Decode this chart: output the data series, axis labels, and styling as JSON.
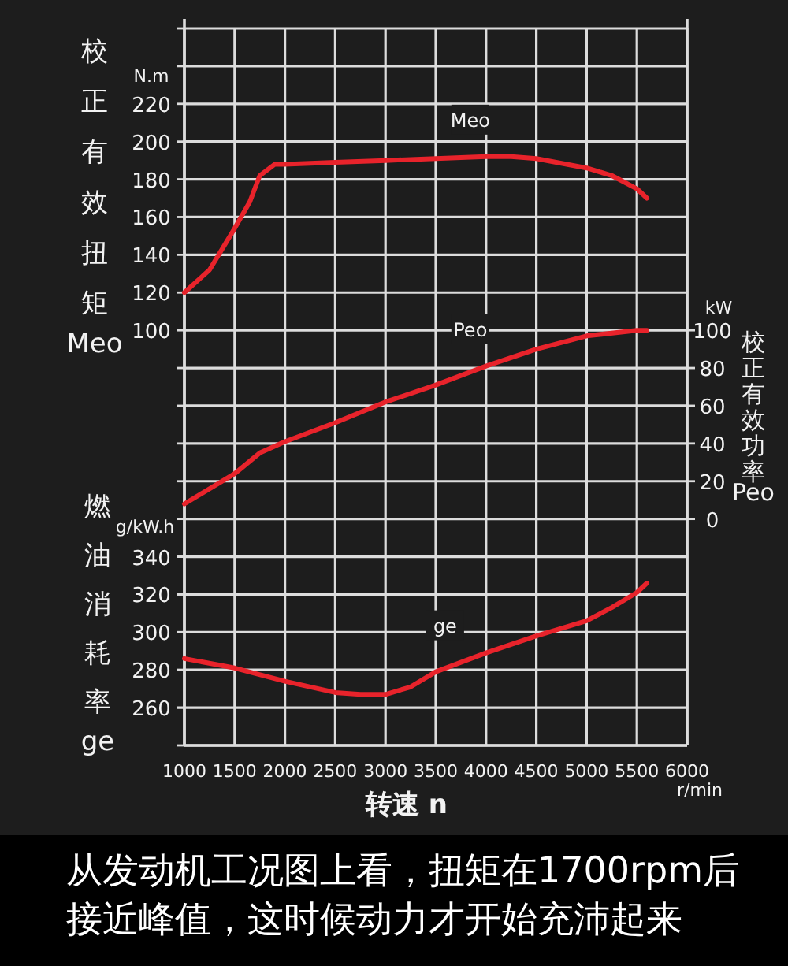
{
  "chart_data": {
    "type": "line",
    "xlabel": "转速 n",
    "ylabel": "校正有效扭矩Meo",
    "y2label": "校正有效功率Peo",
    "y3label": "燃油消耗率ge",
    "xlim": [
      1000,
      6000
    ],
    "xticks": [
      1000,
      1500,
      2000,
      2500,
      3000,
      3500,
      4000,
      4500,
      5000,
      5500,
      6000
    ],
    "ylim": [
      -120,
      260
    ],
    "yticks": [
      {
        "value": -120,
        "label": null
      },
      {
        "value": -100,
        "label": null
      },
      {
        "value": -80,
        "label": null
      },
      {
        "value": -60,
        "label": null
      },
      {
        "value": -40,
        "label": null
      },
      {
        "value": -20,
        "label": null
      },
      {
        "value": 0,
        "label": null
      },
      {
        "value": 20,
        "label": null
      },
      {
        "value": 40,
        "label": null
      },
      {
        "value": 60,
        "label": null
      },
      {
        "value": 80,
        "label": null
      },
      100,
      120,
      140,
      160,
      180,
      200,
      220,
      {
        "value": 240,
        "label": null
      },
      {
        "value": 260,
        "label": null
      }
    ],
    "y2lim": [
      -120,
      260
    ],
    "y2ticks": [
      0,
      20,
      40,
      60,
      80,
      100
    ],
    "y3lim": [
      240,
      620
    ],
    "y3ticks": [
      260,
      280,
      300,
      320,
      340
    ],
    "grid": true,
    "series": [
      {
        "name": "Meo",
        "color": "#e8232b",
        "x": [
          1000,
          1250,
          1500,
          1650,
          1750,
          1900,
          2000,
          2500,
          3000,
          3500,
          4000,
          4250,
          4500,
          5000,
          5250,
          5500,
          5600
        ],
        "values": [
          120,
          132,
          154,
          168,
          182,
          188,
          188,
          189,
          190,
          191,
          192,
          192,
          191,
          186,
          182,
          175,
          170
        ]
      },
      {
        "name": "Peo",
        "color": "#e8232b",
        "axis": "y2",
        "x": [
          1000,
          1500,
          1750,
          2000,
          2500,
          3000,
          3500,
          4000,
          4500,
          5000,
          5500,
          5600
        ],
        "values": [
          8,
          24,
          35,
          41,
          51,
          62,
          71,
          81,
          90,
          97,
          100,
          100
        ]
      },
      {
        "name": "ge",
        "color": "#e8232b",
        "axis": "y3",
        "x": [
          1000,
          1500,
          2000,
          2500,
          2750,
          3000,
          3250,
          3500,
          3750,
          4000,
          4500,
          5000,
          5250,
          5500,
          5600
        ],
        "values": [
          286,
          281,
          274,
          268,
          267,
          267,
          271,
          279,
          284,
          289,
          298,
          306,
          313,
          321,
          326
        ]
      }
    ],
    "annotations": [
      "N.m",
      "kW",
      "g/kW.h",
      "r/min",
      "从发动机工况图上看，扭矩在1700rpm后接近峰值，这时候动力才开始充沛起来"
    ]
  }
}
